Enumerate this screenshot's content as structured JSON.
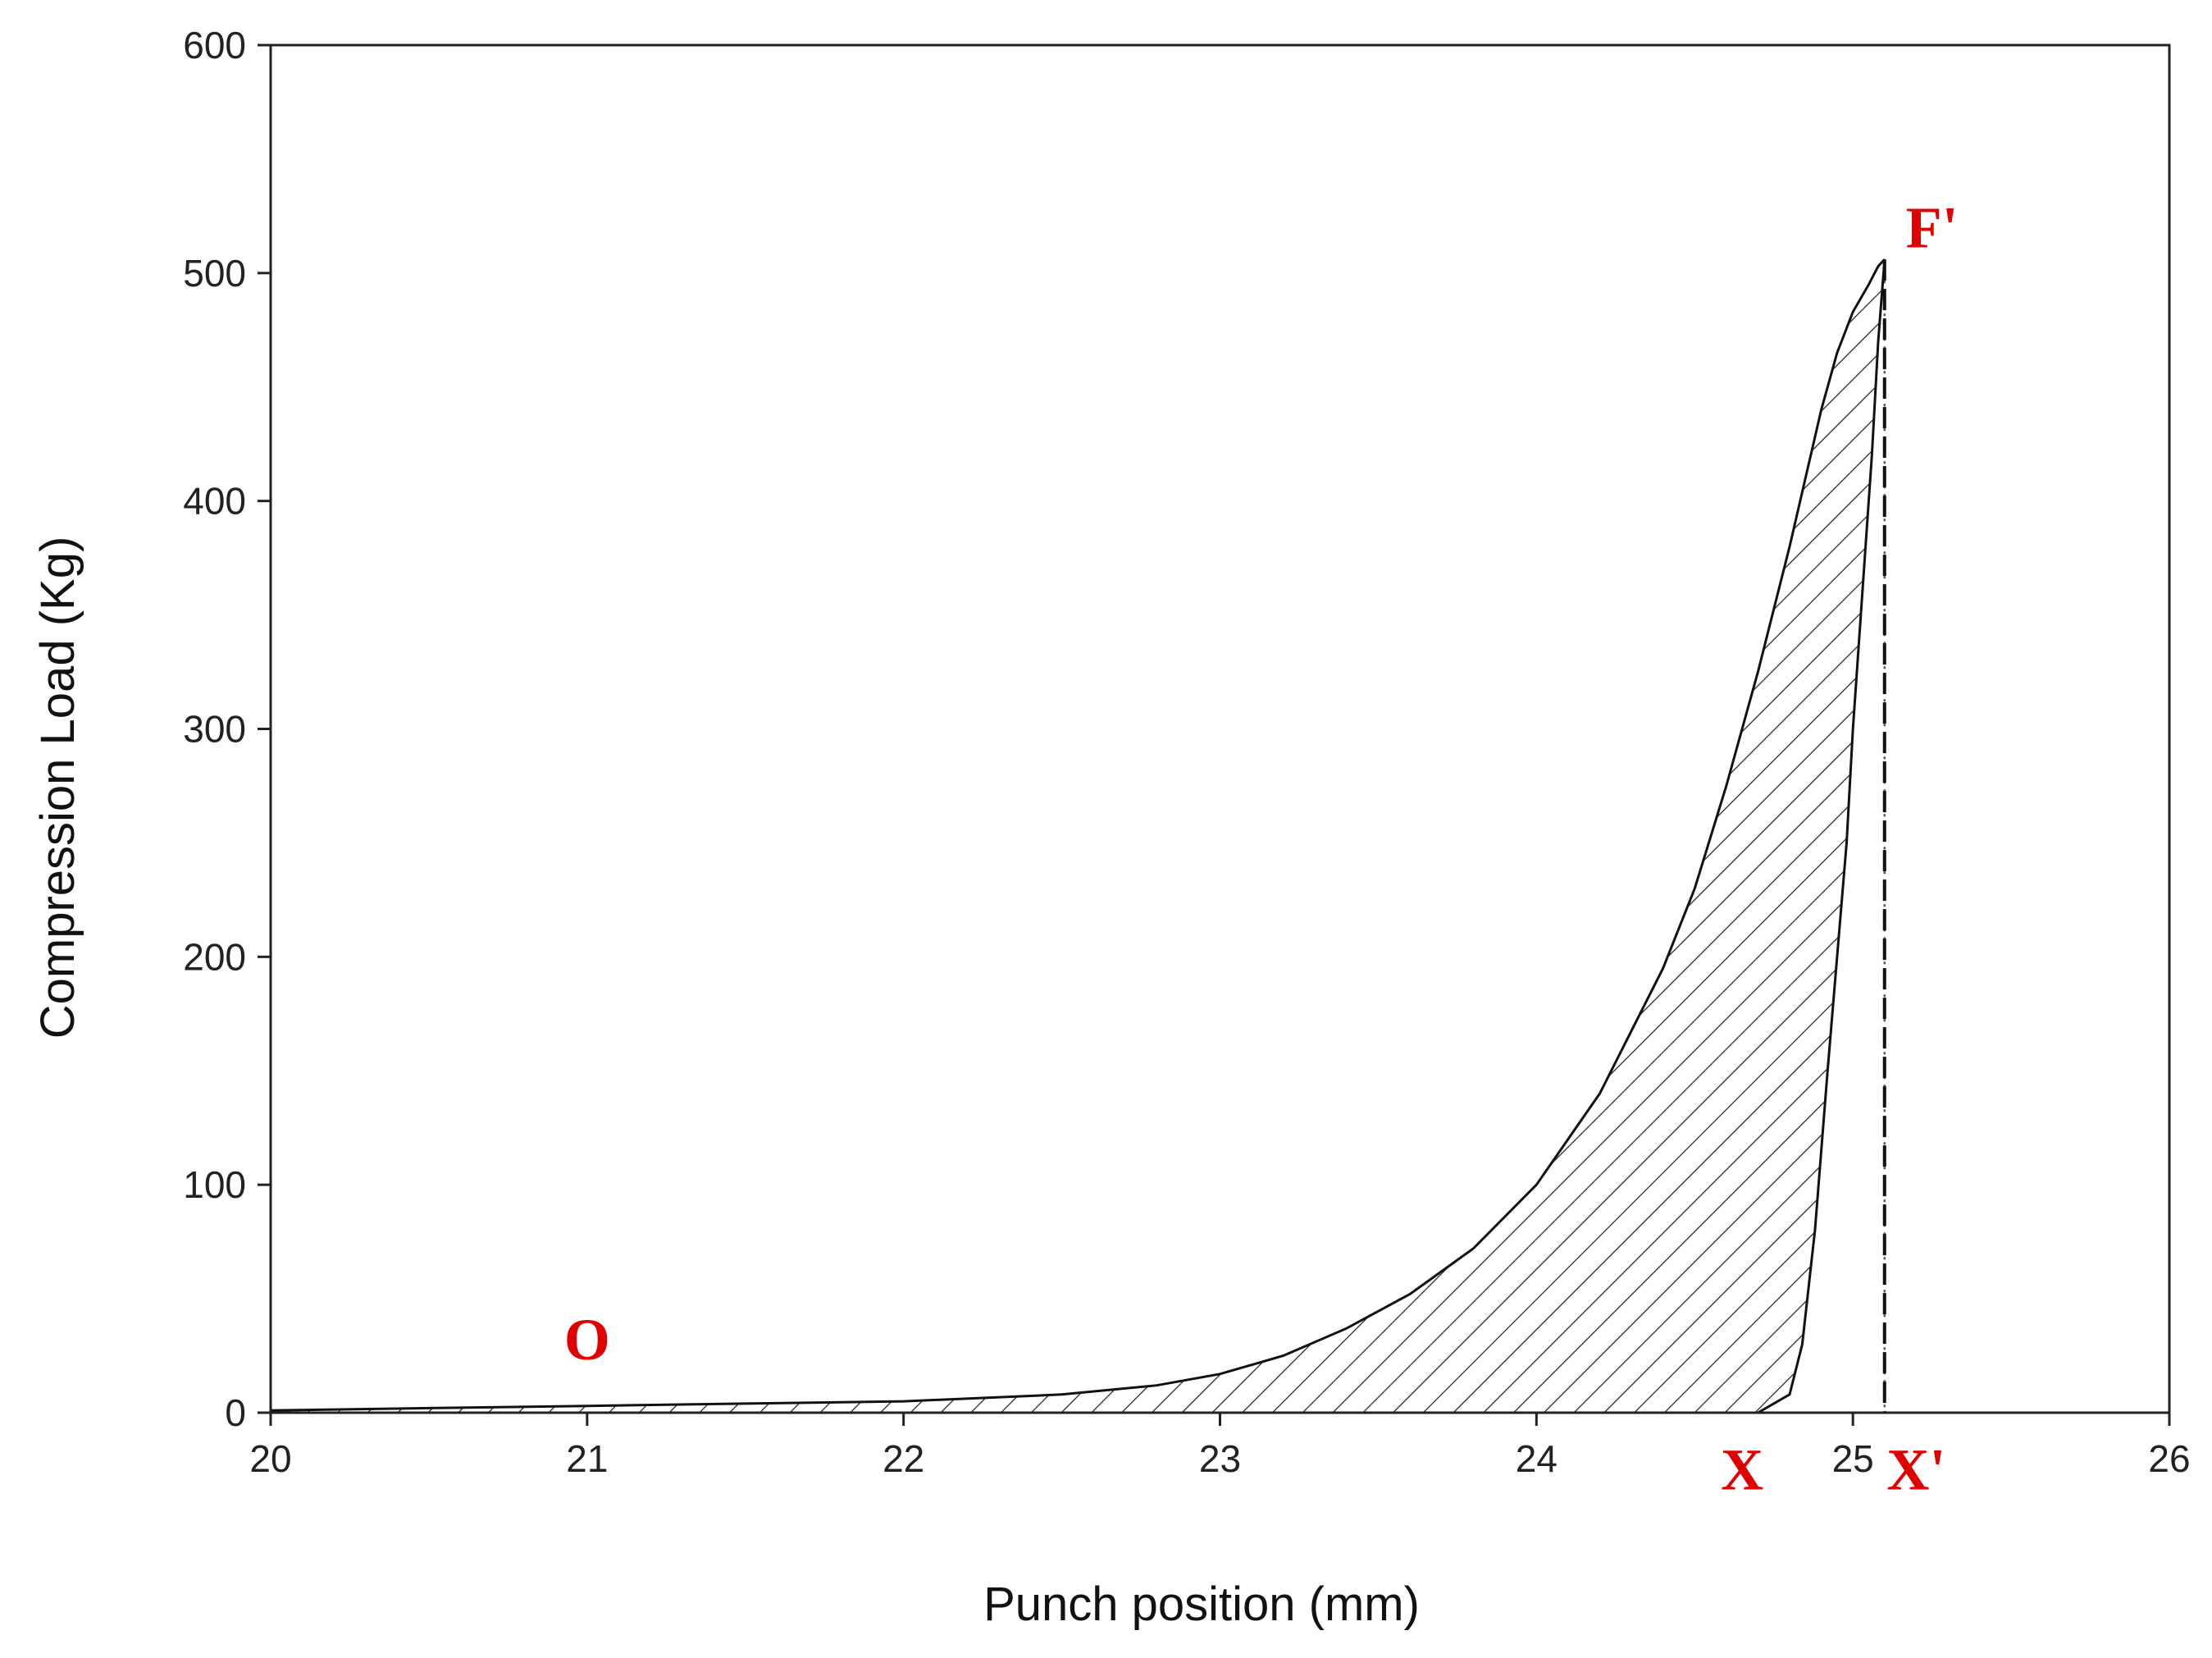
{
  "chart_data": {
    "type": "area",
    "title": "",
    "xlabel": "Punch position (mm)",
    "ylabel": "Compression Load (Kg)",
    "xlim": [
      20,
      26
    ],
    "ylim": [
      0,
      600
    ],
    "x_ticks": [
      "20",
      "21",
      "22",
      "23",
      "24",
      "25",
      "26"
    ],
    "y_ticks": [
      "0",
      "100",
      "200",
      "300",
      "400",
      "500",
      "600"
    ],
    "grid": false,
    "legend": "none",
    "series": [
      {
        "x": [
          20.0,
          20.5,
          21.0,
          21.5,
          22.0,
          22.5,
          22.8,
          23.0,
          23.2,
          23.4,
          23.6,
          23.8,
          24.0,
          24.2,
          24.4,
          24.5,
          24.6,
          24.7,
          24.8,
          24.9,
          24.95,
          25.0,
          25.05,
          25.08,
          25.1
        ],
        "values": [
          1,
          2,
          3,
          4,
          5,
          8,
          12,
          17,
          25,
          37,
          52,
          72,
          100,
          140,
          195,
          230,
          275,
          325,
          380,
          440,
          465,
          483,
          495,
          503,
          506
        ]
      },
      {
        "x": [
          25.1,
          25.1,
          25.1
        ],
        "values": [
          506,
          250,
          0
        ]
      },
      {
        "x": [
          24.7,
          24.8,
          24.84,
          24.88,
          24.92,
          24.95,
          24.98,
          25.0,
          25.02,
          25.04,
          25.06,
          25.08,
          25.1
        ],
        "values": [
          0,
          8,
          30,
          80,
          150,
          200,
          250,
          300,
          340,
          380,
          420,
          470,
          506
        ]
      }
    ],
    "annotations": [
      {
        "text": "O",
        "x": 21.0,
        "y": 32
      },
      {
        "text": "F'",
        "x": 25.25,
        "y": 520
      },
      {
        "text": "X",
        "x": 24.65,
        "y": -25
      },
      {
        "text": "X'",
        "x": 25.2,
        "y": -25
      }
    ],
    "annotation_color": "#e00000"
  }
}
